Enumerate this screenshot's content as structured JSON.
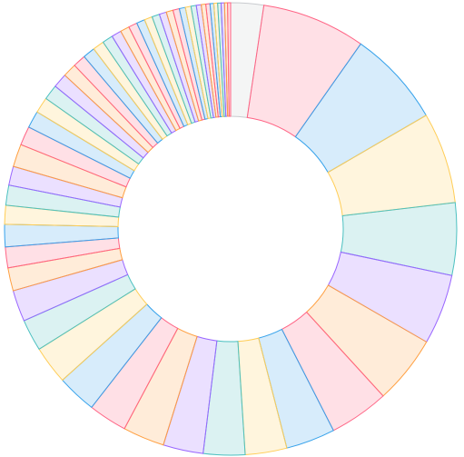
{
  "chart_data": {
    "type": "doughnut",
    "values": [
      8.7,
      27.4,
      25.4,
      24.1,
      19.1,
      18.6,
      18.1,
      15.8,
      13.0,
      11.0,
      11.0,
      10.6,
      11.0,
      10.2,
      10.4,
      10.1,
      8.4,
      8.3,
      6.1,
      5.5,
      5.9,
      5.0,
      5.3,
      5.0,
      6.0,
      5.0,
      4.5,
      4.2,
      4.0,
      3.8,
      3.6,
      3.4,
      3.2,
      3.0,
      2.8,
      2.6,
      2.4,
      2.3,
      2.2,
      2.1,
      2.0,
      1.9,
      1.8,
      1.7,
      1.6,
      1.5,
      1.4,
      1.3,
      1.2,
      1.1,
      1.0,
      1.0,
      0.9,
      0.9,
      0.8,
      0.8
    ],
    "first_color": "#c9cbcf",
    "palette": [
      "#ff6384",
      "#36a2eb",
      "#ffcd56",
      "#4bc0c0",
      "#9966ff",
      "#ff9f40"
    ]
  }
}
